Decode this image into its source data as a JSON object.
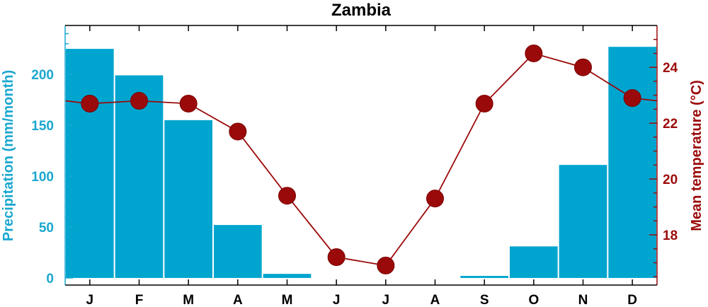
{
  "chart_data": {
    "type": "bar+line",
    "title": "Zambia",
    "categories": [
      "J",
      "F",
      "M",
      "A",
      "M",
      "J",
      "J",
      "A",
      "S",
      "O",
      "N",
      "D"
    ],
    "series": [
      {
        "name": "Precipitation",
        "type": "bar",
        "axis": "left",
        "values": [
          225,
          199,
          155,
          52,
          4,
          0,
          0,
          0,
          2,
          31,
          111,
          227
        ]
      },
      {
        "name": "Mean temperature",
        "type": "line",
        "axis": "right",
        "values": [
          22.7,
          22.8,
          22.7,
          21.7,
          19.4,
          17.2,
          16.9,
          19.3,
          22.7,
          24.5,
          24.0,
          22.9
        ]
      }
    ],
    "left_axis": {
      "label": "Precipitation (mm/month)",
      "ticks": [
        0,
        50,
        100,
        150,
        200
      ],
      "ylim": [
        -7,
        248
      ]
    },
    "right_axis": {
      "label": "Mean temperature (°C)",
      "ticks": [
        18,
        20,
        22,
        24
      ],
      "ylim": [
        16.2,
        25.5
      ]
    },
    "colors": {
      "bar": "#00a5cf",
      "line": "#9b0a0a",
      "left_axis": "#1aa7cf",
      "right_axis": "#9b0a0a"
    },
    "grid": false
  }
}
